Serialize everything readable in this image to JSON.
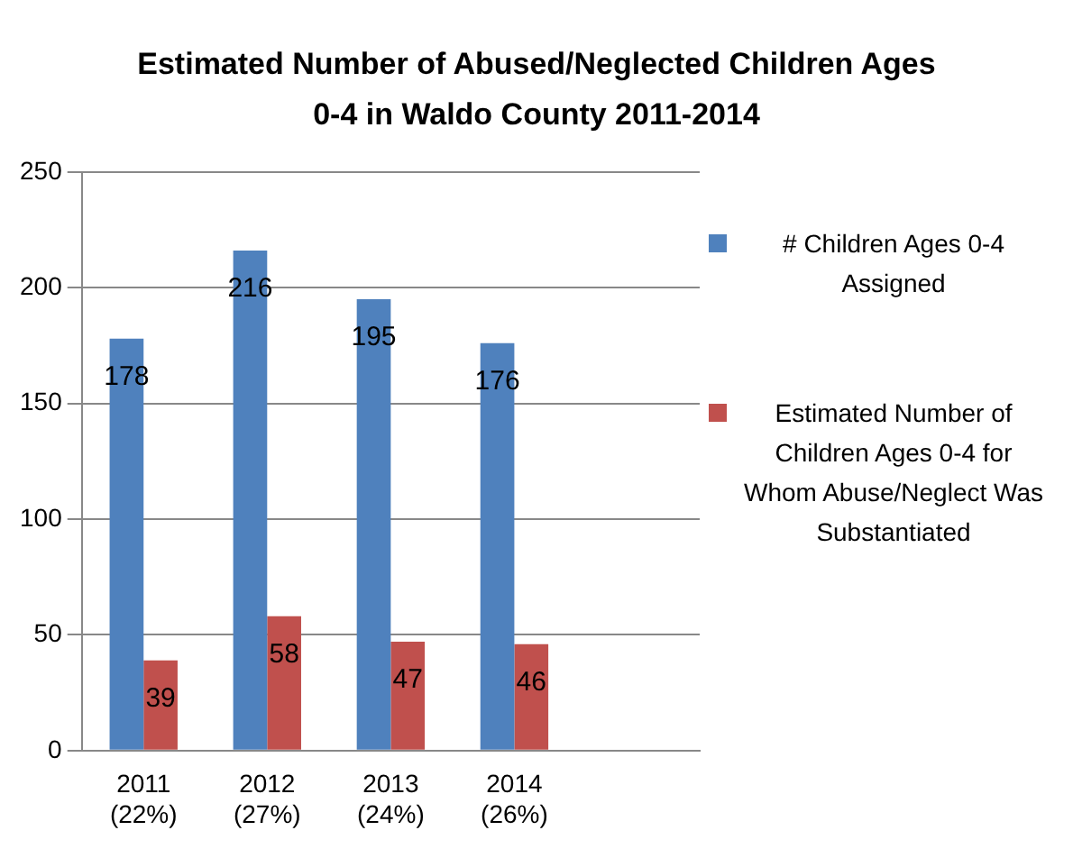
{
  "chart_data": {
    "type": "bar",
    "title": "Estimated Number of Abused/Neglected Children Ages 0-4 in Waldo County 2011-2014",
    "categories": [
      "2011\n(22%)",
      "2012\n(27%)",
      "2013\n(24%)",
      "2014\n(26%)",
      null
    ],
    "series": [
      {
        "name": "# Children Ages 0-4 Assigned",
        "color": "#4f81bd",
        "values": [
          178,
          216,
          195,
          176,
          null
        ]
      },
      {
        "name": "Estimated Number of Children Ages 0-4 for Whom Abuse/Neglect Was Substantiated",
        "color": "#c0504d",
        "values": [
          39,
          58,
          47,
          46,
          null
        ]
      }
    ],
    "ylim": [
      0,
      250
    ],
    "yticks": [
      0,
      50,
      100,
      150,
      200,
      250
    ],
    "grid": "y",
    "legend": "right",
    "data_labels": true
  }
}
